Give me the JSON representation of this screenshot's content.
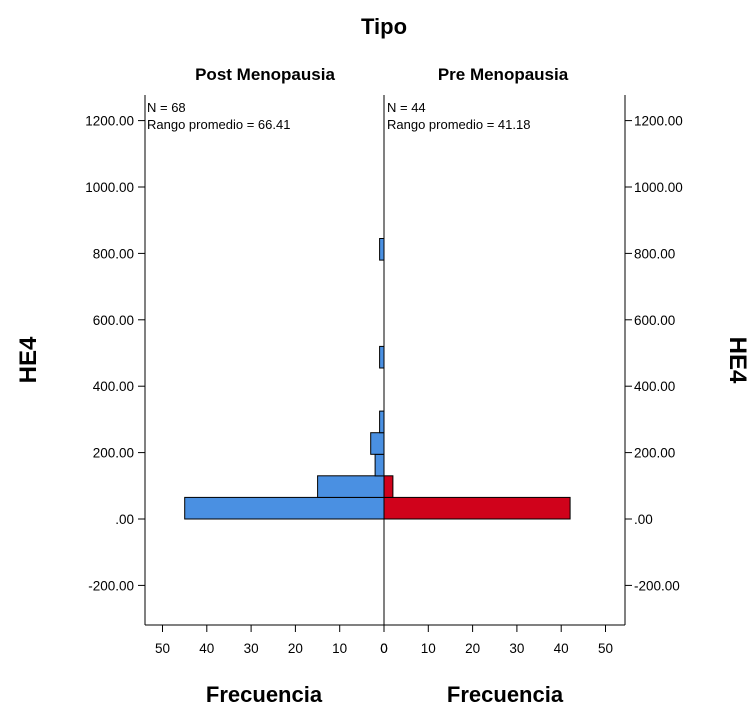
{
  "chart_data": {
    "type": "bar",
    "orientation": "horizontal",
    "title": "Tipo",
    "ylabel": "HE4",
    "xlabel": "Frecuencia",
    "ylim": [
      -300,
      1300
    ],
    "xlim": [
      0,
      50
    ],
    "bin_width": 65,
    "y_ticks": [
      -200,
      0,
      200,
      400,
      600,
      800,
      1000,
      1200
    ],
    "y_tick_labels": [
      "-200.00",
      ".00",
      "200.00",
      "400.00",
      "600.00",
      "800.00",
      "1000.00",
      "1200.00"
    ],
    "x_ticks": [
      50,
      40,
      30,
      20,
      10,
      0
    ],
    "groups": [
      {
        "name": "Post Menopausia",
        "side": "left",
        "color": "#4a90e2",
        "stats": [
          "N = 68",
          "Rango promedio = 66.41"
        ],
        "bins": [
          {
            "y_from": 0,
            "y_to": 65,
            "count": 45
          },
          {
            "y_from": 65,
            "y_to": 130,
            "count": 15
          },
          {
            "y_from": 130,
            "y_to": 195,
            "count": 2
          },
          {
            "y_from": 195,
            "y_to": 260,
            "count": 3
          },
          {
            "y_from": 260,
            "y_to": 325,
            "count": 1
          },
          {
            "y_from": 455,
            "y_to": 520,
            "count": 1
          },
          {
            "y_from": 780,
            "y_to": 845,
            "count": 1
          }
        ]
      },
      {
        "name": "Pre Menopausia",
        "side": "right",
        "color": "#d0021b",
        "stats": [
          "N = 44",
          "Rango promedio = 41.18"
        ],
        "bins": [
          {
            "y_from": 0,
            "y_to": 65,
            "count": 42
          },
          {
            "y_from": 65,
            "y_to": 130,
            "count": 2
          }
        ]
      }
    ]
  }
}
